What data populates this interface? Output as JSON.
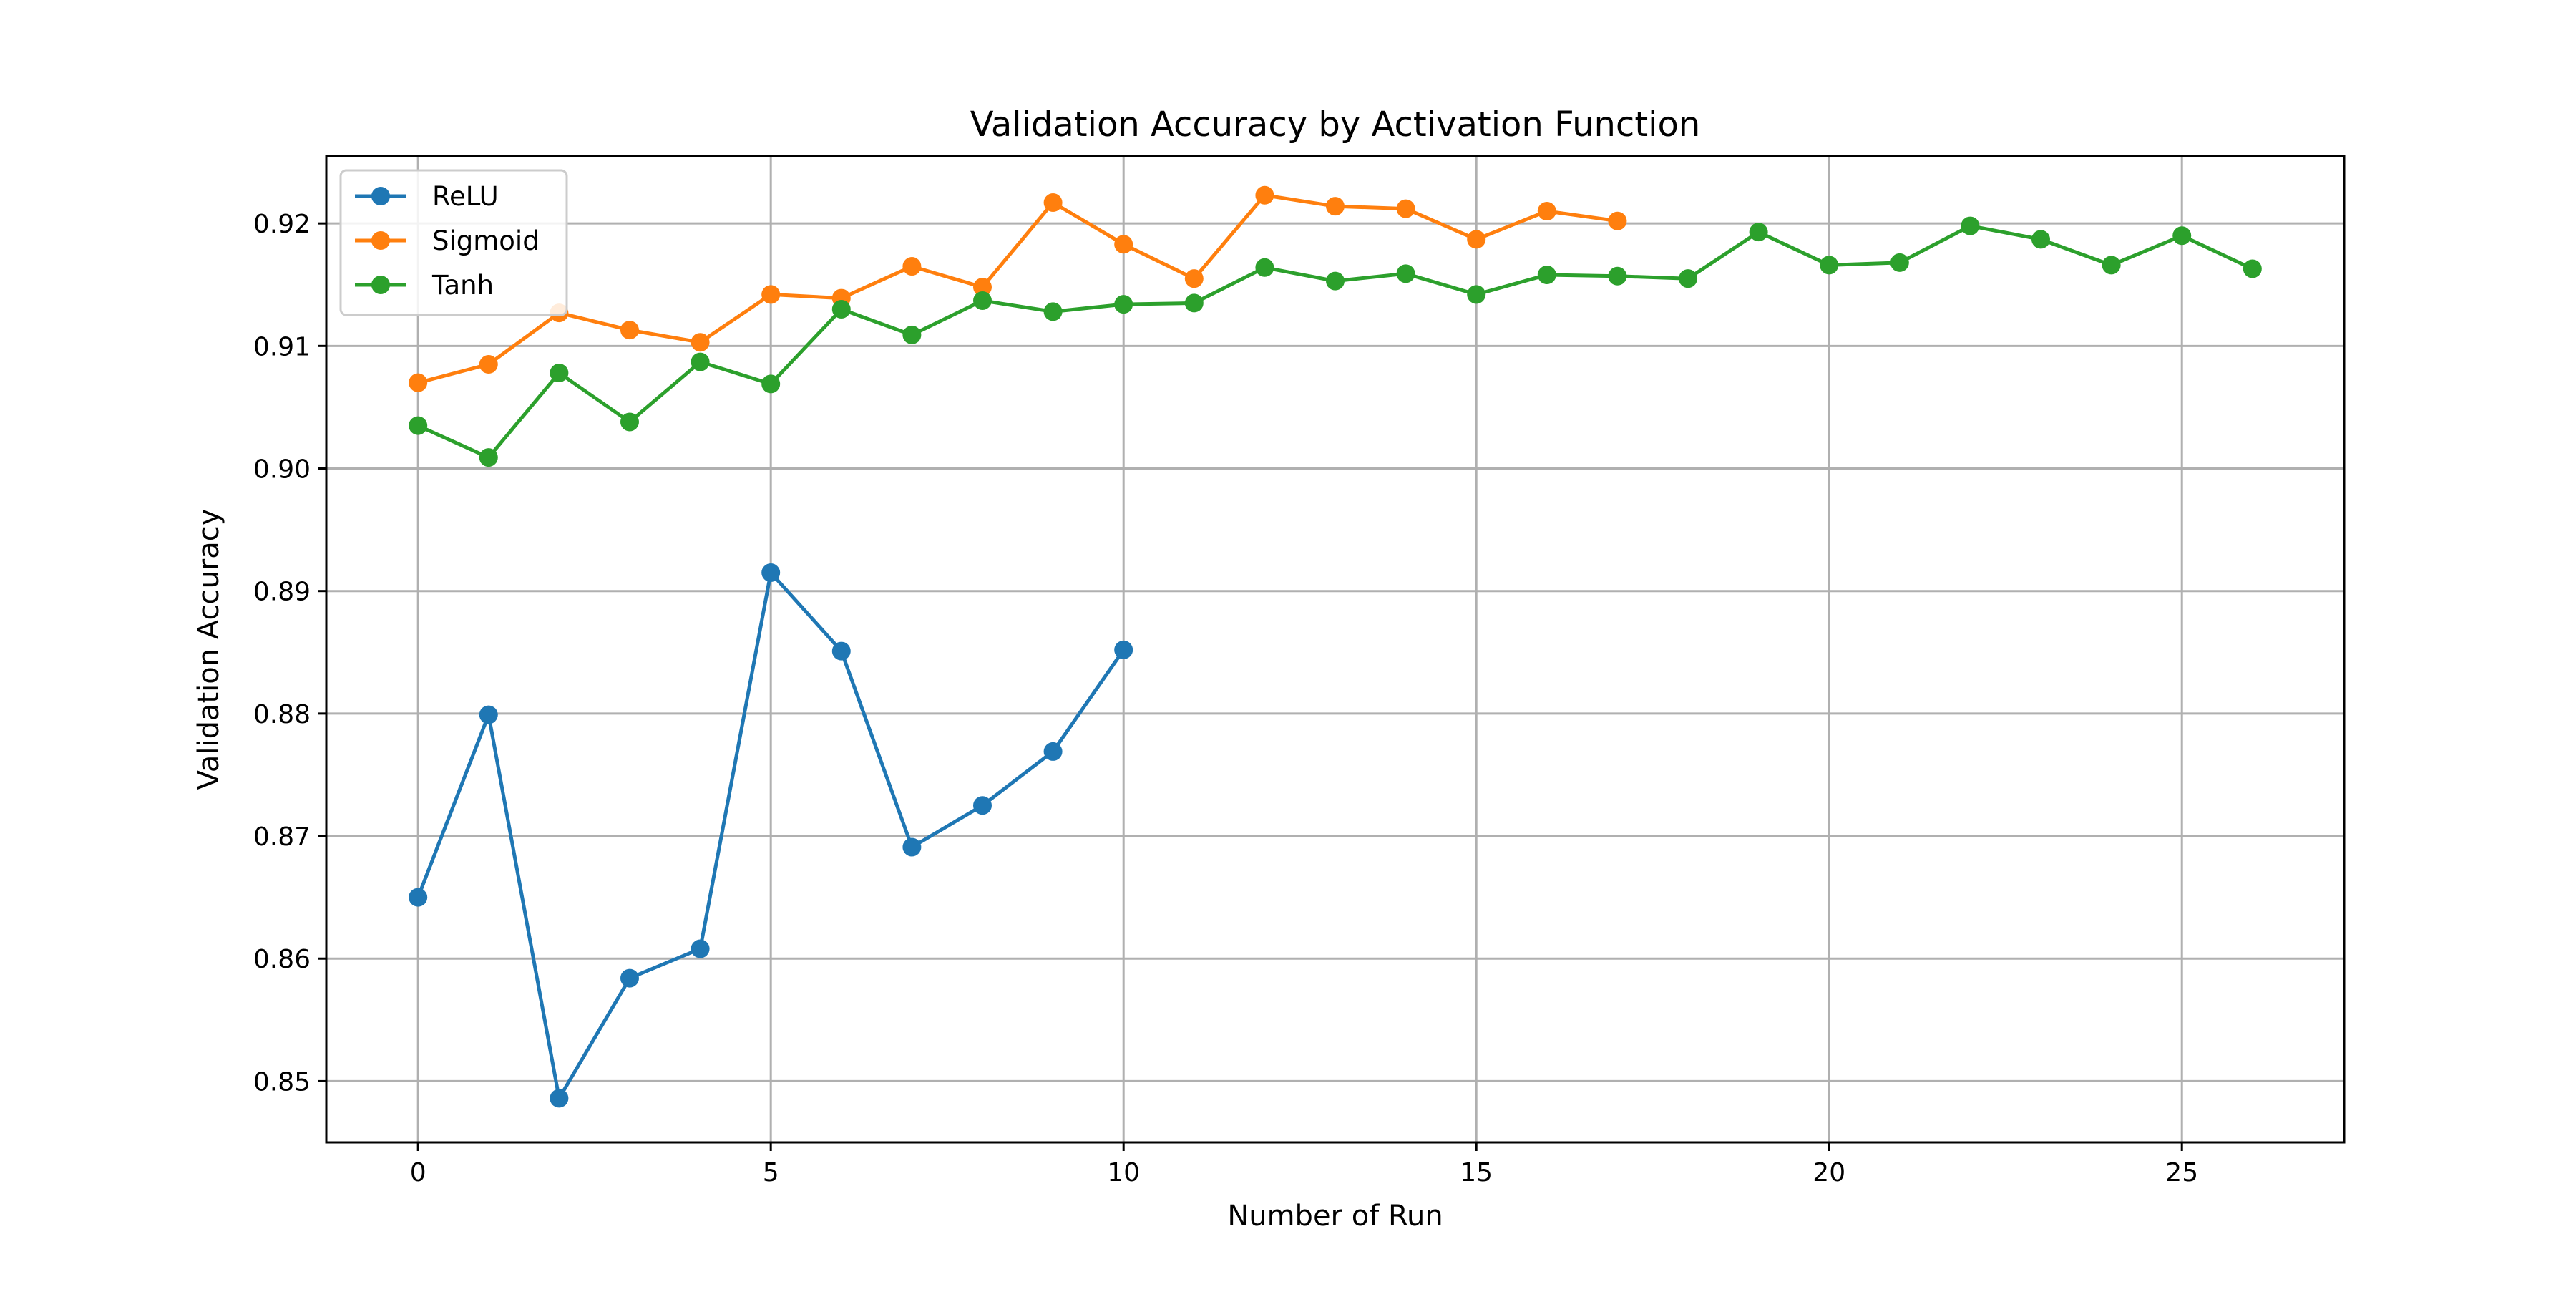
{
  "chart_data": {
    "type": "line",
    "title": "Validation Accuracy by Activation Function",
    "xlabel": "Number of Run",
    "ylabel": "Validation Accuracy",
    "xlim": [
      -1.3,
      27.3
    ],
    "ylim": [
      0.845,
      0.9255
    ],
    "x_ticks": [
      0,
      5,
      10,
      15,
      20,
      25
    ],
    "y_ticks": [
      0.85,
      0.86,
      0.87,
      0.88,
      0.89,
      0.9,
      0.91,
      0.92
    ],
    "y_tick_labels": [
      "0.85",
      "0.86",
      "0.87",
      "0.88",
      "0.89",
      "0.90",
      "0.91",
      "0.92"
    ],
    "grid": true,
    "legend": "upper-left",
    "series": [
      {
        "name": "ReLU",
        "color": "#1f77b4",
        "x": [
          0,
          1,
          2,
          3,
          4,
          5,
          6,
          7,
          8,
          9,
          10
        ],
        "values": [
          0.865,
          0.8799,
          0.8486,
          0.8584,
          0.8608,
          0.8915,
          0.8851,
          0.8691,
          0.8725,
          0.8769,
          0.8852
        ]
      },
      {
        "name": "Sigmoid",
        "color": "#ff7f0e",
        "x": [
          0,
          1,
          2,
          3,
          4,
          5,
          6,
          7,
          8,
          9,
          10,
          11,
          12,
          13,
          14,
          15,
          16,
          17
        ],
        "values": [
          0.907,
          0.9085,
          0.9127,
          0.9113,
          0.9103,
          0.9142,
          0.9139,
          0.9165,
          0.9148,
          0.9217,
          0.9183,
          0.9155,
          0.9223,
          0.9214,
          0.9212,
          0.9187,
          0.921,
          0.9202
        ]
      },
      {
        "name": "Tanh",
        "color": "#2ca02c",
        "x": [
          0,
          1,
          2,
          3,
          4,
          5,
          6,
          7,
          8,
          9,
          10,
          11,
          12,
          13,
          14,
          15,
          16,
          17,
          18,
          19,
          20,
          21,
          22,
          23,
          24,
          25,
          26
        ],
        "values": [
          0.9035,
          0.9009,
          0.9078,
          0.9038,
          0.9087,
          0.9069,
          0.913,
          0.9109,
          0.9137,
          0.9128,
          0.9134,
          0.9135,
          0.9164,
          0.9153,
          0.9159,
          0.9142,
          0.9158,
          0.9157,
          0.9155,
          0.9193,
          0.9166,
          0.9168,
          0.9198,
          0.9187,
          0.9166,
          0.919,
          0.9163
        ]
      }
    ]
  }
}
